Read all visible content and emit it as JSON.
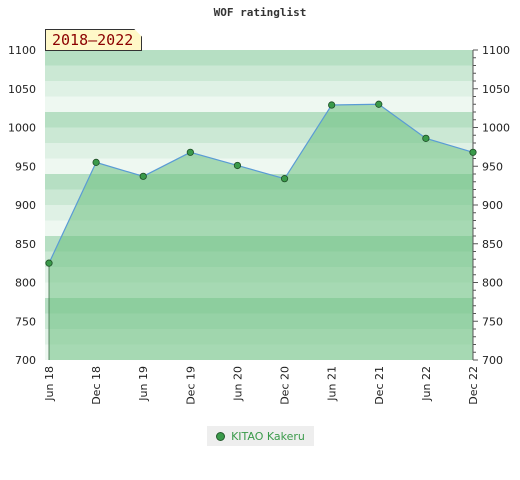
{
  "chart_data": {
    "type": "area",
    "title": "WOF ratinglist",
    "period_label": "2018–2022",
    "x": [
      "Jun 18",
      "Dec 18",
      "Jun 19",
      "Dec 19",
      "Jun 20",
      "Dec 20",
      "Jun 21",
      "Dec 21",
      "Jun 22",
      "Dec 22"
    ],
    "series": [
      {
        "name": "KITAO Kakeru",
        "values": [
          825,
          955,
          937,
          968,
          951,
          934,
          1029,
          1030,
          986,
          968
        ]
      }
    ],
    "ylim": [
      700,
      1100
    ],
    "yticks": [
      700,
      750,
      800,
      850,
      900,
      950,
      1000,
      1050,
      1100
    ],
    "legend": "bottom-center",
    "colors": {
      "line": "#5a9bd5",
      "fill": "#6cbf80",
      "marker": "#3a9a4a"
    }
  }
}
